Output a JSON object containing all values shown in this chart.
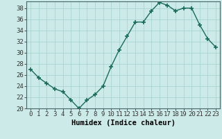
{
  "x": [
    0,
    1,
    2,
    3,
    4,
    5,
    6,
    7,
    8,
    9,
    10,
    11,
    12,
    13,
    14,
    15,
    16,
    17,
    18,
    19,
    20,
    21,
    22,
    23
  ],
  "y": [
    27,
    25.5,
    24.5,
    23.5,
    23,
    21.5,
    20,
    21.5,
    22.5,
    24,
    27.5,
    30.5,
    33,
    35.5,
    35.5,
    37.5,
    39,
    38.5,
    37.5,
    38,
    38,
    35,
    32.5,
    31
  ],
  "line_color": "#1a6b5a",
  "marker_color": "#1a6b5a",
  "bg_color": "#cceae7",
  "grid_color": "#aad4d0",
  "xlabel": "Humidex (Indice chaleur)",
  "ylim": [
    20,
    39
  ],
  "xlim": [
    -0.5,
    23.5
  ],
  "yticks": [
    20,
    22,
    24,
    26,
    28,
    30,
    32,
    34,
    36,
    38
  ],
  "xticks": [
    0,
    1,
    2,
    3,
    4,
    5,
    6,
    7,
    8,
    9,
    10,
    11,
    12,
    13,
    14,
    15,
    16,
    17,
    18,
    19,
    20,
    21,
    22,
    23
  ],
  "xlabel_fontsize": 7.5,
  "tick_fontsize": 6.5,
  "marker_size": 4,
  "line_width": 1.0
}
